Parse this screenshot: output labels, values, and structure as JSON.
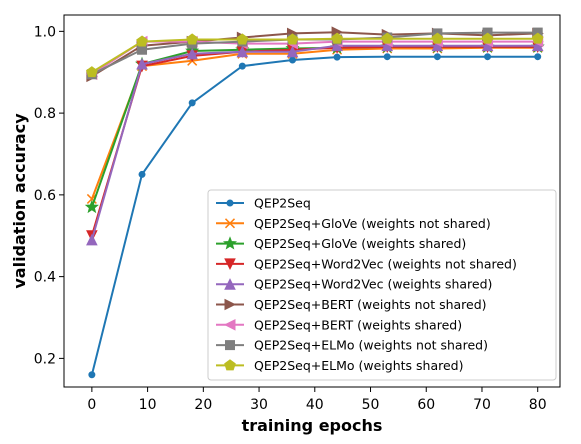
{
  "chart_data": {
    "type": "line",
    "xlabel": "training epochs",
    "ylabel": "validation accuracy",
    "xlim": [
      -5,
      84
    ],
    "ylim": [
      0.13,
      1.04
    ],
    "xticks": [
      0,
      10,
      20,
      30,
      40,
      50,
      60,
      70,
      80
    ],
    "yticks": [
      0.2,
      0.4,
      0.6,
      0.8,
      1.0
    ],
    "ytick_labels": [
      "0.2",
      "0.4",
      "0.6",
      "0.8",
      "1.0"
    ],
    "grid": false,
    "legend_position": "lower-right",
    "x": [
      0,
      9,
      18,
      27,
      36,
      44,
      53,
      62,
      71,
      80
    ],
    "series": [
      {
        "name": "QEP2Seq",
        "color": "#1f77b4",
        "marker": "circle",
        "values": [
          0.16,
          0.65,
          0.825,
          0.915,
          0.93,
          0.937,
          0.938,
          0.938,
          0.938,
          0.938
        ]
      },
      {
        "name": "QEP2Seq+GloVe (weights not shared)",
        "color": "#ff7f0e",
        "marker": "x",
        "values": [
          0.59,
          0.915,
          0.928,
          0.945,
          0.945,
          0.955,
          0.958,
          0.958,
          0.96,
          0.96
        ]
      },
      {
        "name": "QEP2Seq+GloVe (weights shared)",
        "color": "#2ca02c",
        "marker": "star",
        "values": [
          0.57,
          0.92,
          0.952,
          0.955,
          0.958,
          0.96,
          0.962,
          0.962,
          0.962,
          0.962
        ]
      },
      {
        "name": "QEP2Seq+Word2Vec (weights not shared)",
        "color": "#d62728",
        "marker": "triangle-down",
        "values": [
          0.5,
          0.915,
          0.94,
          0.95,
          0.955,
          0.96,
          0.962,
          0.962,
          0.962,
          0.962
        ]
      },
      {
        "name": "QEP2Seq+Word2Vec (weights shared)",
        "color": "#9467bd",
        "marker": "triangle-up",
        "values": [
          0.49,
          0.92,
          0.945,
          0.95,
          0.95,
          0.965,
          0.965,
          0.965,
          0.965,
          0.965
        ]
      },
      {
        "name": "QEP2Seq+BERT (weights not shared)",
        "color": "#8c564b",
        "marker": "triangle-right",
        "values": [
          0.89,
          0.965,
          0.975,
          0.985,
          0.995,
          0.998,
          0.992,
          0.995,
          0.99,
          0.995
        ]
      },
      {
        "name": "QEP2Seq+BERT (weights shared)",
        "color": "#e377c2",
        "marker": "triangle-left",
        "values": [
          0.895,
          0.975,
          0.975,
          0.97,
          0.97,
          0.975,
          0.975,
          0.975,
          0.975,
          0.975
        ]
      },
      {
        "name": "QEP2Seq+ELMo (weights not shared)",
        "color": "#7f7f7f",
        "marker": "square",
        "values": [
          0.895,
          0.955,
          0.97,
          0.975,
          0.98,
          0.98,
          0.985,
          0.995,
          0.997,
          0.997
        ]
      },
      {
        "name": "QEP2Seq+ELMo (weights shared)",
        "color": "#bcbd22",
        "marker": "pentagon",
        "values": [
          0.9,
          0.975,
          0.98,
          0.98,
          0.98,
          0.982,
          0.982,
          0.982,
          0.982,
          0.982
        ]
      }
    ]
  }
}
